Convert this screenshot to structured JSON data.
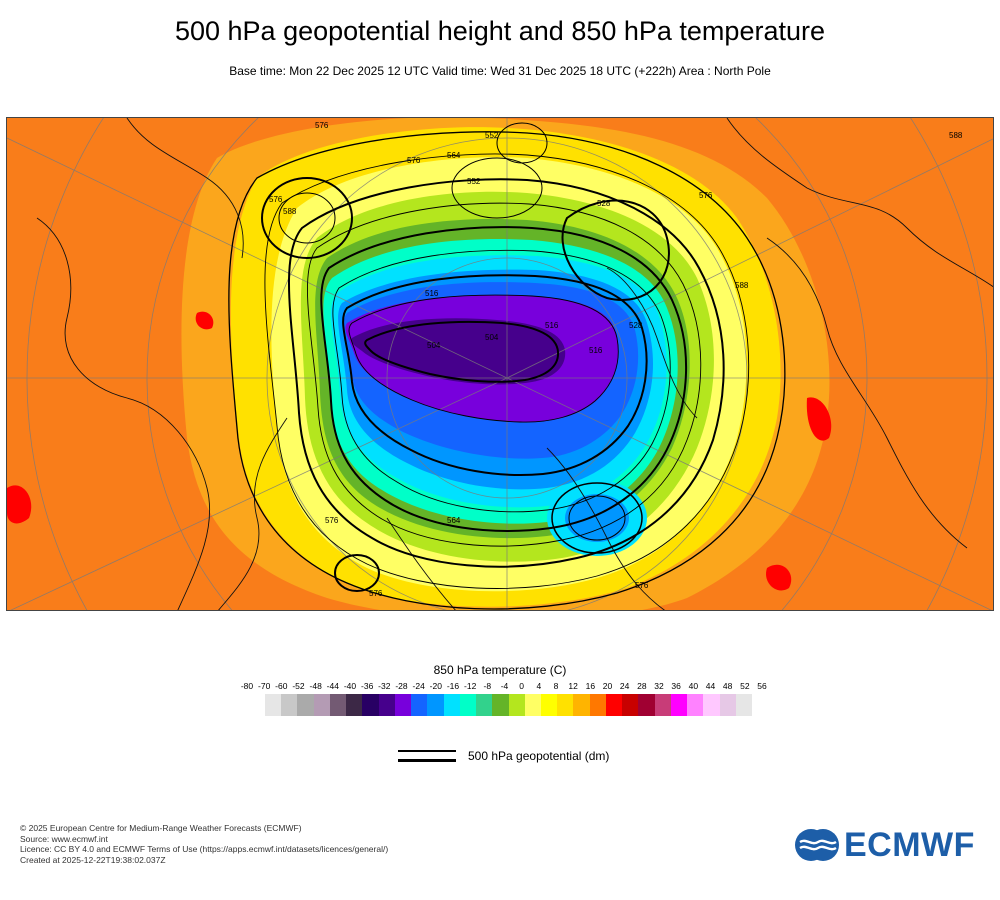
{
  "header": {
    "title": "500 hPa geopotential height and 850 hPa temperature",
    "subtitle": "Base time: Mon 22 Dec 2025 12 UTC Valid time: Wed 31 Dec 2025 18 UTC (+222h) Area : North Pole"
  },
  "map": {
    "contour_labels": [
      "504",
      "516",
      "528",
      "540",
      "552",
      "564",
      "576",
      "588"
    ],
    "colors": {
      "warm": "#f97d1a",
      "very_warm": "#ff1a14",
      "orange": "#fba61c",
      "yellow": "#fff200",
      "pale_yellow": "#ffff82",
      "lime": "#c8e61e",
      "green": "#61b04a",
      "teal": "#3bdca0",
      "cyan": "#00e6ff",
      "blue": "#1e90ff",
      "dark_blue": "#3a3ad8",
      "purple": "#6a1eea",
      "deep_purple": "#4b1a8a"
    }
  },
  "legend": {
    "title": "850 hPa temperature (C)",
    "ticks": [
      "-80",
      "-70",
      "-60",
      "-52",
      "-48",
      "-44",
      "-40",
      "-36",
      "-32",
      "-28",
      "-24",
      "-20",
      "-16",
      "-12",
      "-8",
      "-4",
      "0",
      "4",
      "8",
      "12",
      "16",
      "20",
      "24",
      "28",
      "32",
      "36",
      "40",
      "44",
      "48",
      "52",
      "56"
    ],
    "colors": [
      "#e6e6e6",
      "#c8c8c8",
      "#aaaaaa",
      "#b49bb4",
      "#735a73",
      "#3c2846",
      "#280064",
      "#46008c",
      "#7800dc",
      "#1464ff",
      "#0096ff",
      "#00e1ff",
      "#00ffc8",
      "#32d28c",
      "#64b428",
      "#b4e61e",
      "#ffff64",
      "#ffff00",
      "#ffe100",
      "#ffb400",
      "#ff7800",
      "#ff0000",
      "#c80000",
      "#a00032",
      "#c83c78",
      "#ff00ff",
      "#ff82ff",
      "#ffc8ff",
      "#e6c8e6",
      "#e6e6e6"
    ],
    "geopotential_label": "500 hPa geopotential (dm)"
  },
  "footer": {
    "copyright": "© 2025 European Centre for Medium-Range Weather Forecasts (ECMWF)",
    "source": "Source: www.ecmwf.int",
    "licence": "Licence: CC BY 4.0 and ECMWF Terms of Use (https://apps.ecmwf.int/datasets/licences/general/)",
    "created": "Created at 2025-12-22T19:38:02.037Z"
  },
  "logo": {
    "text": "ECMWF",
    "color": "#1d5ea8"
  }
}
